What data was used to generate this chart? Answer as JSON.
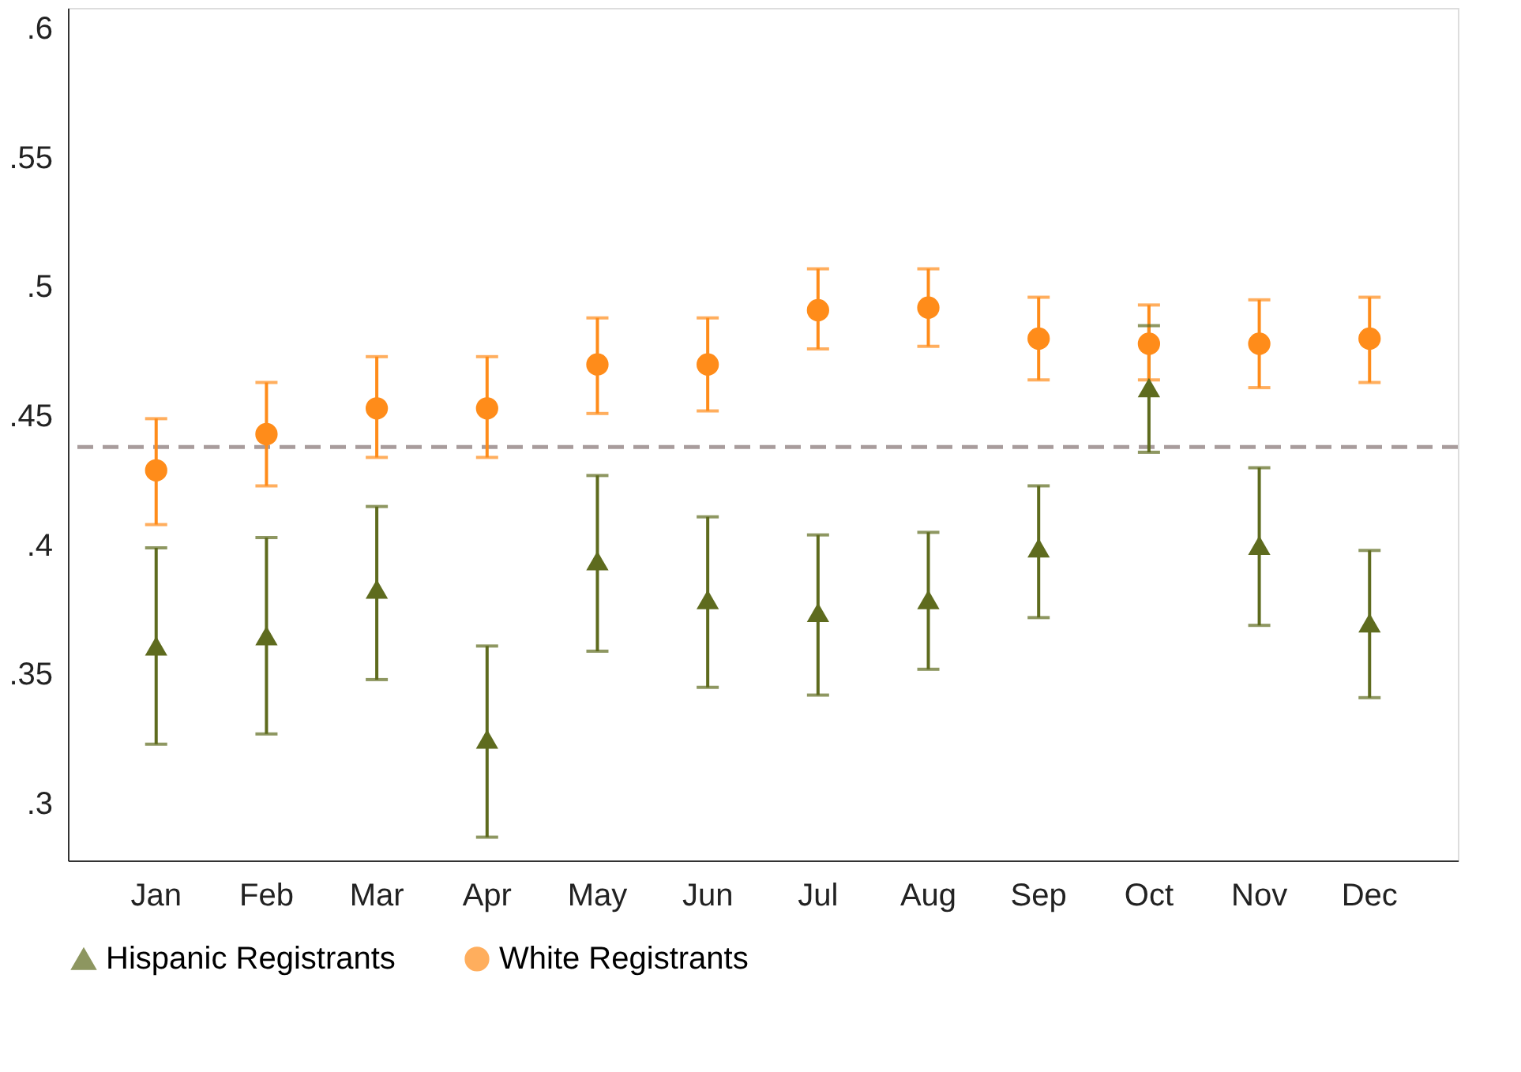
{
  "chart_data": {
    "type": "scatter",
    "categories": [
      "Jan",
      "Feb",
      "Mar",
      "Apr",
      "May",
      "Jun",
      "Jul",
      "Aug",
      "Sep",
      "Oct",
      "Nov",
      "Dec"
    ],
    "series": [
      {
        "name": "Hispanic Registrants",
        "color": "#5e6b1e",
        "marker": "triangle",
        "values": [
          0.361,
          0.365,
          0.383,
          0.325,
          0.394,
          0.379,
          0.374,
          0.379,
          0.399,
          0.461,
          0.4,
          0.37
        ],
        "errors": [
          [
            0.323,
            0.399
          ],
          [
            0.327,
            0.403
          ],
          [
            0.348,
            0.415
          ],
          [
            0.287,
            0.361
          ],
          [
            0.359,
            0.427
          ],
          [
            0.345,
            0.411
          ],
          [
            0.342,
            0.404
          ],
          [
            0.352,
            0.405
          ],
          [
            0.372,
            0.423
          ],
          [
            0.436,
            0.485
          ],
          [
            0.369,
            0.43
          ],
          [
            0.341,
            0.398
          ]
        ]
      },
      {
        "name": "White Registrants",
        "color": "#ff8c1a",
        "marker": "circle",
        "values": [
          0.429,
          0.443,
          0.453,
          0.453,
          0.47,
          0.47,
          0.491,
          0.492,
          0.48,
          0.478,
          0.478,
          0.48
        ],
        "errors": [
          [
            0.408,
            0.449
          ],
          [
            0.423,
            0.463
          ],
          [
            0.434,
            0.473
          ],
          [
            0.434,
            0.473
          ],
          [
            0.451,
            0.488
          ],
          [
            0.452,
            0.488
          ],
          [
            0.476,
            0.507
          ],
          [
            0.477,
            0.507
          ],
          [
            0.464,
            0.496
          ],
          [
            0.464,
            0.493
          ],
          [
            0.461,
            0.495
          ],
          [
            0.463,
            0.496
          ]
        ]
      }
    ],
    "ylim": [
      0.278,
      0.608
    ],
    "yticks": [
      {
        "value": 0.3,
        "label": ".3"
      },
      {
        "value": 0.35,
        "label": ".35"
      },
      {
        "value": 0.4,
        "label": ".4"
      },
      {
        "value": 0.45,
        "label": ".45"
      },
      {
        "value": 0.5,
        "label": ".5"
      },
      {
        "value": 0.55,
        "label": ".55"
      },
      {
        "value": 0.6,
        "label": ".6"
      }
    ],
    "ref_lines": [
      {
        "axis": "y",
        "value": 0.438,
        "color": "#a89c9c",
        "line_style": "dashed"
      }
    ],
    "grid": false,
    "legend": "bottom"
  }
}
